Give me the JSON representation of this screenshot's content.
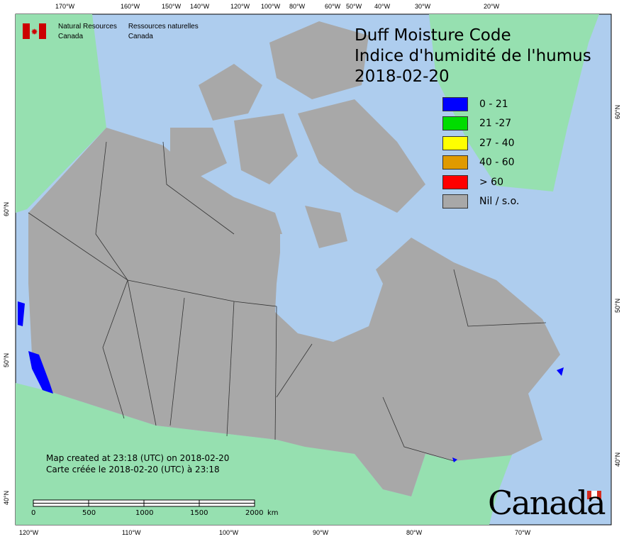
{
  "header": {
    "dept_en": "Natural Resources",
    "dept_en2": "Canada",
    "dept_fr": "Ressources naturelles",
    "dept_fr2": "Canada"
  },
  "title": {
    "line1": "Duff Moisture Code",
    "line2": "Indice d'humidité de l'humus",
    "date": "2018-02-20"
  },
  "legend": [
    {
      "label": "0 - 21",
      "color": "#0000ff"
    },
    {
      "label": "21 -27",
      "color": "#00dd00"
    },
    {
      "label": "27 - 40",
      "color": "#ffff00"
    },
    {
      "label": "40 - 60",
      "color": "#e09a00"
    },
    {
      "label": "> 60",
      "color": "#ff0000"
    },
    {
      "label": "Nil / s.o.",
      "color": "#a8a8a8"
    }
  ],
  "top_axis": [
    "170°W",
    "160°W",
    "150°W",
    "140°W",
    "120°W",
    "100°W",
    "80°W",
    "60°W",
    "50°W",
    "40°W",
    "30°W",
    "20°W"
  ],
  "bottom_axis": [
    "120°W",
    "110°W",
    "100°W",
    "90°W",
    "80°W",
    "70°W"
  ],
  "left_axis": [
    "60°N",
    "50°N",
    "40°N"
  ],
  "right_axis": [
    "60°N",
    "50°N",
    "40°N"
  ],
  "footer": {
    "created_en": "Map created at 23:18 (UTC) on 2018-02-20",
    "created_fr": "Carte créée le 2018-02-20 (UTC) à 23:18"
  },
  "scale": {
    "ticks": [
      "0",
      "500",
      "1000",
      "1500",
      "2000"
    ],
    "unit": "km"
  },
  "wordmark": "Canada",
  "colors": {
    "ocean": "#aecdee",
    "foreign_land": "#96e0b0",
    "nil": "#a8a8a8"
  }
}
